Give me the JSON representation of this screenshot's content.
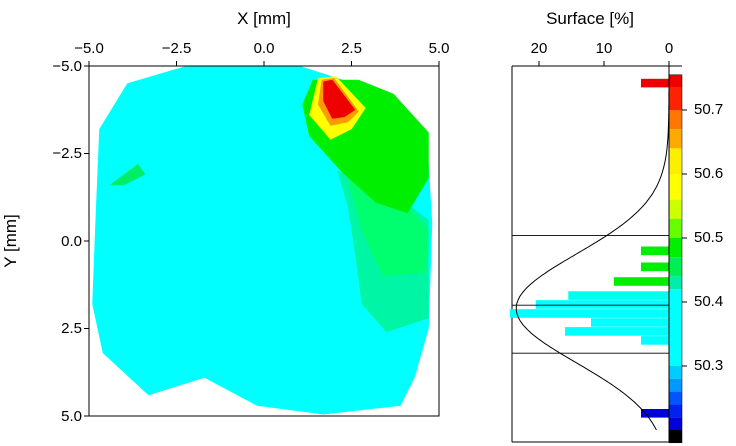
{
  "map_panel": {
    "xlabel": "X [mm]",
    "ylabel": "Y [mm]",
    "xlim": [
      -5.0,
      5.0
    ],
    "ylim": [
      -5.0,
      5.0
    ],
    "x_ticks": [
      "−5.0",
      "−2.5",
      "0.0",
      "2.5",
      "5.0"
    ],
    "y_ticks": [
      "−5.0",
      "−2.5",
      "0.0",
      "2.5",
      "5.0"
    ],
    "y_axis_inverted": true
  },
  "histogram_panel": {
    "title": "Surface [%]",
    "x_ticks": [
      "20",
      "10",
      "0"
    ],
    "xlim": [
      25,
      0
    ],
    "color_scale_ticks": [
      "50.7",
      "50.6",
      "50.5",
      "50.4",
      "50.3"
    ]
  },
  "chart_data": [
    {
      "type": "heatmap",
      "xlabel": "X [mm]",
      "ylabel": "Y [mm]",
      "xlim": [
        -5.0,
        5.0
      ],
      "ylim": [
        -5.0,
        5.0
      ],
      "y_inverted": true,
      "contour_regions": [
        {
          "level": "cyan",
          "color": "#00ffff",
          "range": [
            50.3,
            50.42
          ],
          "points": [
            [
              -2.2,
              -5.0
            ],
            [
              1.0,
              -5.0
            ],
            [
              3.5,
              -4.2
            ],
            [
              4.7,
              -2.2
            ],
            [
              4.8,
              -0.5
            ],
            [
              4.7,
              2.5
            ],
            [
              4.3,
              3.9
            ],
            [
              3.9,
              4.7
            ],
            [
              1.7,
              4.95
            ],
            [
              -0.2,
              4.7
            ],
            [
              -1.7,
              3.9
            ],
            [
              -3.3,
              4.4
            ],
            [
              -4.6,
              3.2
            ],
            [
              -4.9,
              1.8
            ],
            [
              -4.8,
              -0.8
            ],
            [
              -4.7,
              -3.2
            ],
            [
              -3.9,
              -4.5
            ]
          ]
        },
        {
          "level": "blue-green",
          "color": "#00f5a5",
          "range": [
            50.42,
            50.45
          ],
          "points": [
            [
              2.1,
              -2.0
            ],
            [
              3.9,
              -1.2
            ],
            [
              4.7,
              -0.6
            ],
            [
              4.7,
              2.2
            ],
            [
              3.5,
              2.6
            ],
            [
              2.8,
              1.8
            ],
            [
              2.6,
              0.3
            ],
            [
              2.4,
              -1.0
            ]
          ]
        },
        {
          "level": "green-cyan",
          "color": "#00ff6e",
          "range": [
            50.45,
            50.48
          ],
          "points": [
            [
              2.3,
              -2.2
            ],
            [
              4.1,
              -1.0
            ],
            [
              4.7,
              -0.3
            ],
            [
              4.6,
              0.9
            ],
            [
              3.4,
              1.0
            ],
            [
              2.8,
              -0.3
            ],
            [
              2.5,
              -1.4
            ]
          ]
        },
        {
          "level": "green",
          "color": "#00ef00",
          "range": [
            50.48,
            50.55
          ],
          "points": [
            [
              1.4,
              -4.6
            ],
            [
              2.7,
              -4.6
            ],
            [
              3.7,
              -4.2
            ],
            [
              4.7,
              -3.1
            ],
            [
              4.7,
              -1.8
            ],
            [
              4.1,
              -0.8
            ],
            [
              3.2,
              -1.1
            ],
            [
              2.2,
              -2.0
            ],
            [
              1.3,
              -3.0
            ],
            [
              1.1,
              -3.9
            ]
          ]
        },
        {
          "level": "yellow",
          "color": "#ffff00",
          "range": [
            50.55,
            50.62
          ],
          "points": [
            [
              1.55,
              -4.65
            ],
            [
              2.05,
              -4.7
            ],
            [
              2.9,
              -3.8
            ],
            [
              2.5,
              -3.2
            ],
            [
              1.9,
              -2.9
            ],
            [
              1.3,
              -3.6
            ]
          ]
        },
        {
          "level": "orange",
          "color": "#ff9900",
          "range": [
            50.62,
            50.68
          ],
          "points": [
            [
              1.65,
              -4.6
            ],
            [
              2.0,
              -4.65
            ],
            [
              2.7,
              -3.7
            ],
            [
              2.4,
              -3.4
            ],
            [
              1.9,
              -3.3
            ],
            [
              1.55,
              -3.9
            ]
          ]
        },
        {
          "level": "red",
          "color": "#ee0000",
          "range": [
            50.68,
            50.75
          ],
          "points": [
            [
              1.7,
              -4.55
            ],
            [
              1.95,
              -4.6
            ],
            [
              2.6,
              -3.75
            ],
            [
              2.3,
              -3.55
            ],
            [
              1.95,
              -3.5
            ],
            [
              1.7,
              -4.0
            ]
          ]
        },
        {
          "level": "small-feature",
          "color": "#00ee66",
          "range": [
            50.45,
            50.48
          ],
          "points": [
            [
              -4.4,
              -1.6
            ],
            [
              -3.6,
              -2.2
            ],
            [
              -3.4,
              -1.9
            ],
            [
              -4.0,
              -1.6
            ]
          ]
        }
      ]
    },
    {
      "type": "bar",
      "orientation": "horizontal",
      "title": "Surface [%]",
      "xlim": [
        25,
        0
      ],
      "value_range": [
        50.2,
        50.75
      ],
      "bins": [
        {
          "value": 50.742,
          "surface": 4.3,
          "color": "#ee0000"
        },
        {
          "value": 50.48,
          "surface": 4.3,
          "color": "#00ee00"
        },
        {
          "value": 50.455,
          "surface": 4.3,
          "color": "#00ee00"
        },
        {
          "value": 50.432,
          "surface": 8.5,
          "color": "#00ee00"
        },
        {
          "value": 50.41,
          "surface": 15.5,
          "color": "#00ffee"
        },
        {
          "value": 50.396,
          "surface": 20.5,
          "color": "#00ffff"
        },
        {
          "value": 50.382,
          "surface": 24.5,
          "color": "#00ffff"
        },
        {
          "value": 50.368,
          "surface": 12.0,
          "color": "#00ffff"
        },
        {
          "value": 50.354,
          "surface": 16.0,
          "color": "#00ffff"
        },
        {
          "value": 50.34,
          "surface": 4.3,
          "color": "#00ffff"
        },
        {
          "value": 50.226,
          "surface": 4.3,
          "color": "#0000dd"
        }
      ],
      "fit_curve": {
        "type": "gaussian",
        "amplitude": 23.5,
        "mean": 50.39,
        "sigma": 0.085
      },
      "reference_lines": [
        50.504,
        50.395,
        50.32
      ]
    }
  ],
  "colorbar": {
    "ticks": [
      50.7,
      50.6,
      50.5,
      50.4,
      50.3
    ],
    "ranges": [
      {
        "from": 50.735,
        "to": 50.755,
        "color": "#ee0000"
      },
      {
        "from": 50.7,
        "to": 50.735,
        "color": "#ff2200"
      },
      {
        "from": 50.67,
        "to": 50.7,
        "color": "#ff7700"
      },
      {
        "from": 50.64,
        "to": 50.67,
        "color": "#ffaa00"
      },
      {
        "from": 50.6,
        "to": 50.64,
        "color": "#ffee00"
      },
      {
        "from": 50.56,
        "to": 50.6,
        "color": "#ffff00"
      },
      {
        "from": 50.53,
        "to": 50.56,
        "color": "#ccff00"
      },
      {
        "from": 50.5,
        "to": 50.53,
        "color": "#66ff00"
      },
      {
        "from": 50.47,
        "to": 50.5,
        "color": "#00ee00"
      },
      {
        "from": 50.44,
        "to": 50.47,
        "color": "#00ee55"
      },
      {
        "from": 50.42,
        "to": 50.44,
        "color": "#00eeaa"
      },
      {
        "from": 50.3,
        "to": 50.42,
        "color": "#00ffff"
      },
      {
        "from": 50.28,
        "to": 50.3,
        "color": "#00ccff"
      },
      {
        "from": 50.26,
        "to": 50.28,
        "color": "#0099ff"
      },
      {
        "from": 50.24,
        "to": 50.26,
        "color": "#0055ff"
      },
      {
        "from": 50.22,
        "to": 50.24,
        "color": "#0022ee"
      },
      {
        "from": 50.2,
        "to": 50.22,
        "color": "#0000dd"
      },
      {
        "from": 50.18,
        "to": 50.2,
        "color": "#000000"
      }
    ]
  }
}
